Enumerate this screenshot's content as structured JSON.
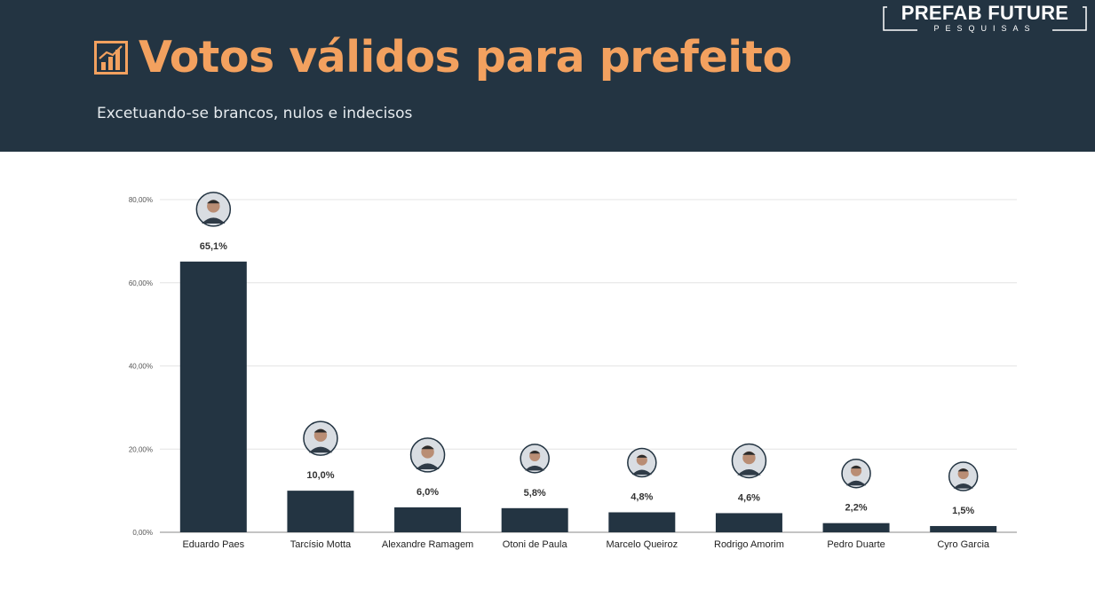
{
  "header": {
    "title": "Votos válidos para prefeito",
    "subtitle": "Excetuando-se brancos, nulos e indecisos",
    "title_icon": "bar-chart-icon",
    "brand_name": "PREFAB FUTURE",
    "brand_sub": "PESQUISAS"
  },
  "colors": {
    "header_bg": "#233442",
    "title": "#f3a15f",
    "bar": "#233442",
    "grid": "#e4e4e4"
  },
  "chart_data": {
    "type": "bar",
    "categories": [
      "Eduardo Paes",
      "Tarcísio Motta",
      "Alexandre Ramagem",
      "Otoni de Paula",
      "Marcelo Queiroz",
      "Rodrigo Amorim",
      "Pedro Duarte",
      "Cyro Garcia"
    ],
    "values": [
      65.1,
      10.0,
      6.0,
      5.8,
      4.8,
      4.6,
      2.2,
      1.5
    ],
    "data_labels": [
      "65,1%",
      "10,0%",
      "6,0%",
      "5,8%",
      "4,8%",
      "4,6%",
      "2,2%",
      "1,5%"
    ],
    "ylim": [
      0,
      80
    ],
    "yticks": [
      0,
      20,
      40,
      60,
      80
    ],
    "ytick_labels": [
      "0,00%",
      "20,00%",
      "40,00%",
      "60,00%",
      "80,00%"
    ],
    "grid": true,
    "photo_markers": [
      "candidate-photo",
      "candidate-photo",
      "candidate-photo",
      "candidate-photo",
      "candidate-photo",
      "candidate-photo",
      "candidate-photo",
      "candidate-photo"
    ],
    "xlabel": "",
    "ylabel": ""
  }
}
